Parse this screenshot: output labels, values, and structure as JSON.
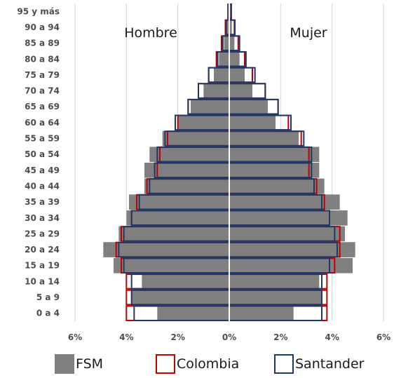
{
  "chart_data": {
    "type": "bar",
    "orientation": "horizontal-pyramid",
    "categories": [
      "0 a 4",
      "5 a 9",
      "10 a 14",
      "15 a 19",
      "20 a 24",
      "25 a 29",
      "30 a 34",
      "35 a 39",
      "40 a 44",
      "45 a 49",
      "50 a 54",
      "55 a 59",
      "60 a 64",
      "65 a 69",
      "70 a 74",
      "75 a 79",
      "80 a 84",
      "85 a 89",
      "90 a 94",
      "95 y más"
    ],
    "side_labels": {
      "left": "Hombre",
      "right": "Mujer"
    },
    "xlim": [
      -6,
      6
    ],
    "x_ticks": [
      -6,
      -4,
      -2,
      0,
      2,
      4,
      6
    ],
    "x_tick_labels": [
      "6%",
      "4%",
      "2%",
      "0%",
      "2%",
      "4%",
      "6%"
    ],
    "grid": true,
    "legend_position": "bottom",
    "series": [
      {
        "name": "FSM",
        "style": "filled",
        "male": [
          2.8,
          3.8,
          3.4,
          4.5,
          4.9,
          4.3,
          4.0,
          3.9,
          3.3,
          3.3,
          3.1,
          2.6,
          2.0,
          1.5,
          1.0,
          0.6,
          0.4,
          0.2,
          0.1,
          0.05
        ],
        "female": [
          2.5,
          3.6,
          3.5,
          4.8,
          4.9,
          4.5,
          4.6,
          4.3,
          3.7,
          3.5,
          3.5,
          2.7,
          1.8,
          1.5,
          0.9,
          0.6,
          0.4,
          0.2,
          0.1,
          0.05
        ]
      },
      {
        "name": "Colombia",
        "style": "outline",
        "male": [
          4.0,
          4.0,
          4.0,
          4.2,
          4.4,
          4.2,
          3.8,
          3.6,
          3.2,
          2.8,
          2.7,
          2.4,
          2.0,
          1.6,
          1.2,
          0.8,
          0.5,
          0.3,
          0.15,
          0.05
        ],
        "female": [
          3.8,
          3.8,
          3.8,
          4.1,
          4.3,
          4.3,
          3.9,
          3.7,
          3.4,
          3.1,
          3.1,
          2.8,
          2.3,
          1.9,
          1.4,
          0.9,
          0.6,
          0.35,
          0.2,
          0.07
        ]
      },
      {
        "name": "Santander",
        "style": "outline",
        "male": [
          3.7,
          3.8,
          3.8,
          4.1,
          4.3,
          4.1,
          3.8,
          3.5,
          3.1,
          2.9,
          2.8,
          2.5,
          2.1,
          1.6,
          1.2,
          0.8,
          0.45,
          0.25,
          0.12,
          0.04
        ],
        "female": [
          3.6,
          3.6,
          3.6,
          3.9,
          4.2,
          4.1,
          3.9,
          3.6,
          3.3,
          3.2,
          3.2,
          2.9,
          2.4,
          1.9,
          1.4,
          1.0,
          0.65,
          0.4,
          0.22,
          0.08
        ]
      }
    ]
  },
  "colors": {
    "fsm": "#808080",
    "colombia": "#c00000",
    "santander": "#1f3864",
    "grid": "#d9d9d9",
    "axis_line": "#ffffff"
  },
  "legend": {
    "items": [
      "FSM",
      "Colombia",
      "Santander"
    ]
  }
}
